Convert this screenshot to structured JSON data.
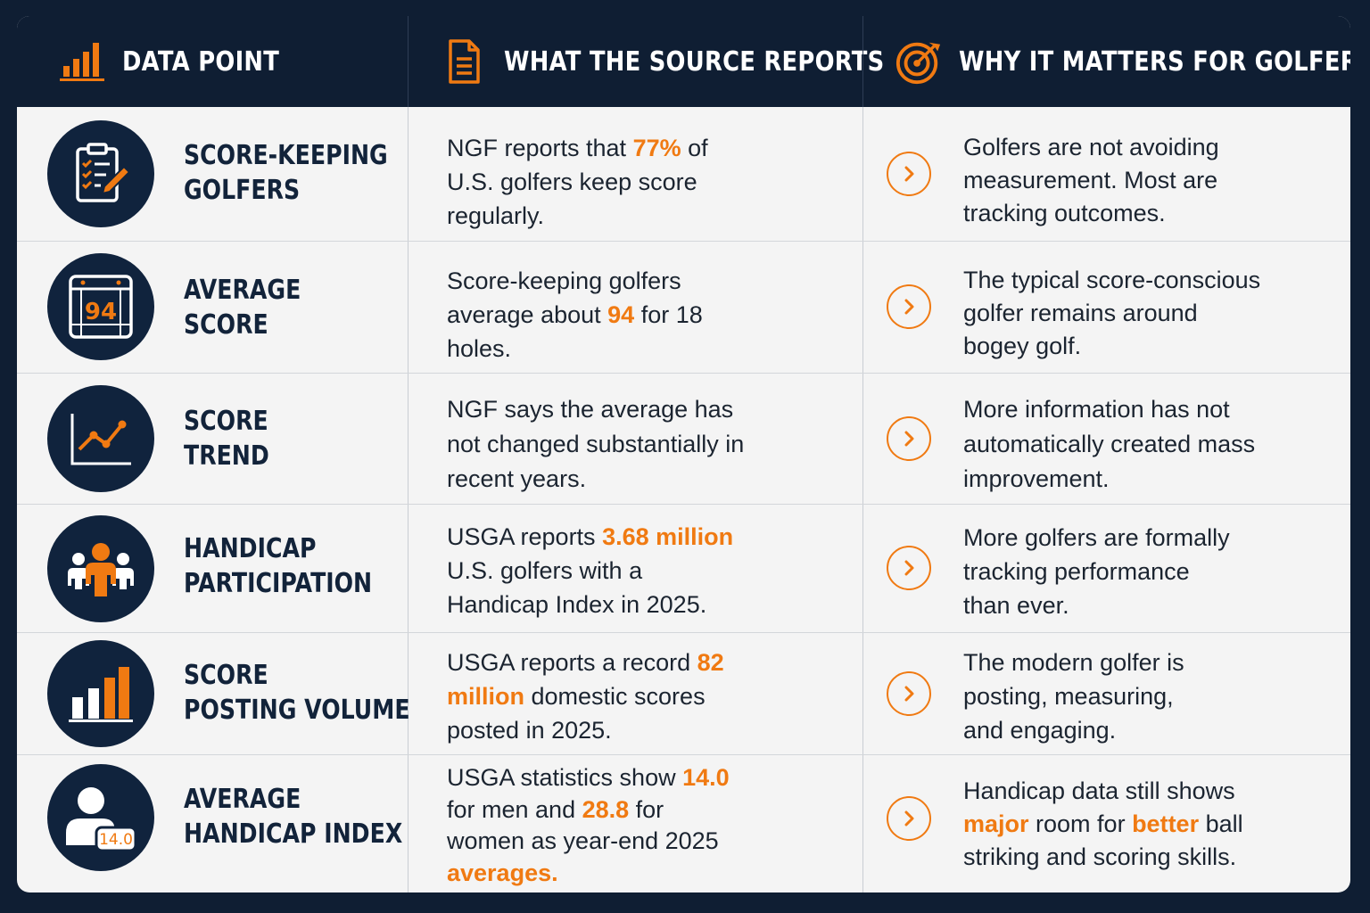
{
  "header": {
    "col1": "DATA POINT",
    "col2": "WHAT THE SOURCE REPORTS",
    "col3": "WHY IT MATTERS FOR GOLFERS"
  },
  "rows": [
    {
      "icon": "clipboard-checklist-pencil-icon",
      "label": [
        "SCORE-KEEPING",
        "GOLFERS"
      ],
      "source": [
        [
          "NGF reports that ",
          "",
          "77%",
          " of"
        ],
        [
          "U.S. golfers keep score"
        ],
        [
          "regularly."
        ]
      ],
      "why": [
        [
          "Golfers are not avoiding"
        ],
        [
          "measurement. Most are"
        ],
        [
          "tracking outcomes."
        ]
      ]
    },
    {
      "icon": "calendar-scorecard-icon",
      "icon_text": "94",
      "label": [
        "AVERAGE",
        "SCORE"
      ],
      "source": [
        [
          "Score-keeping golfers"
        ],
        [
          "average about ",
          "",
          "94",
          " for 18"
        ],
        [
          "holes."
        ]
      ],
      "why": [
        [
          "The typical score-conscious"
        ],
        [
          "golfer remains around"
        ],
        [
          "bogey golf."
        ]
      ]
    },
    {
      "icon": "line-trend-chart-icon",
      "label": [
        "SCORE",
        "TREND"
      ],
      "source": [
        [
          "NGF says the average has"
        ],
        [
          "not changed substantially in"
        ],
        [
          "recent years."
        ]
      ],
      "why": [
        [
          "More information has not"
        ],
        [
          "automatically created mass"
        ],
        [
          "improvement."
        ]
      ]
    },
    {
      "icon": "group-people-icon",
      "label": [
        "HANDICAP",
        "PARTICIPATION"
      ],
      "source": [
        [
          "USGA reports ",
          "",
          "3.68 million"
        ],
        [
          "U.S. golfers with a"
        ],
        [
          "Handicap Index in 2025."
        ]
      ],
      "why": [
        [
          "More golfers are formally"
        ],
        [
          "tracking performance"
        ],
        [
          "than ever."
        ]
      ]
    },
    {
      "icon": "bar-chart-icon",
      "label": [
        "SCORE",
        "POSTING VOLUME"
      ],
      "source": [
        [
          "USGA reports a record ",
          "",
          "82"
        ],
        [
          "",
          "",
          "million",
          " domestic scores"
        ],
        [
          "posted in 2025."
        ]
      ],
      "why": [
        [
          "The modern golfer is"
        ],
        [
          "posting, measuring,"
        ],
        [
          "and engaging."
        ]
      ]
    },
    {
      "icon": "person-handicap-badge-icon",
      "icon_text": "14.0",
      "label": [
        "AVERAGE",
        "HANDICAP INDEX"
      ],
      "source": [
        [
          "USGA statistics show ",
          "",
          "14.0"
        ],
        [
          "for men and ",
          "",
          "28.8",
          " for"
        ],
        [
          "women as year-end 2025"
        ],
        [
          "",
          "",
          "averages."
        ]
      ],
      "why": [
        [
          "Handicap data still shows"
        ],
        [
          "",
          "",
          "major",
          " room for ",
          "better",
          " ball"
        ],
        [
          "striking and scoring skills."
        ]
      ]
    }
  ],
  "colors": {
    "navy": "#0f1e33",
    "orange": "#f07a12",
    "panel": "#f4f4f4"
  }
}
